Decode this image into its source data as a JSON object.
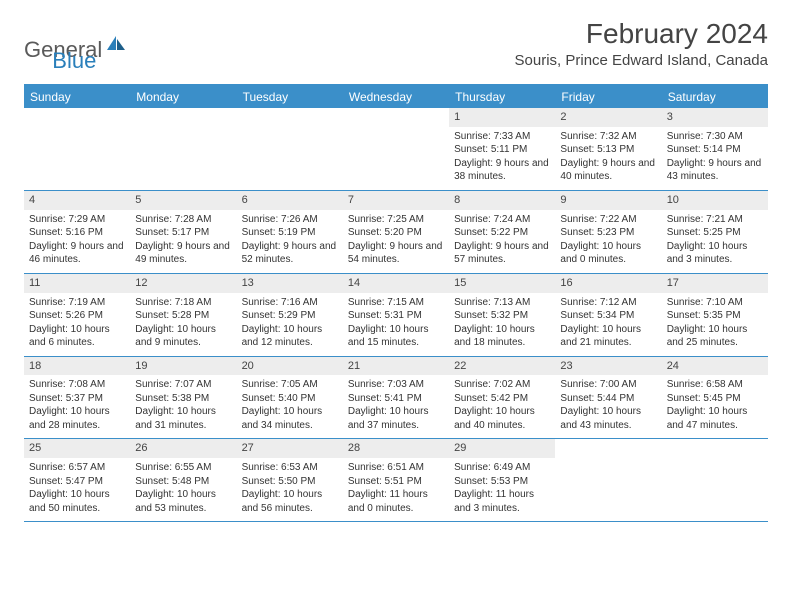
{
  "logo": {
    "text_gray": "General",
    "text_blue": "Blue"
  },
  "title": "February 2024",
  "location": "Souris, Prince Edward Island, Canada",
  "colors": {
    "header_bg": "#3b8fc9",
    "row_border": "#3b8fc9",
    "daynum_bg": "#ededed",
    "text": "#333333"
  },
  "weekdays": [
    "Sunday",
    "Monday",
    "Tuesday",
    "Wednesday",
    "Thursday",
    "Friday",
    "Saturday"
  ],
  "weeks": [
    [
      {
        "num": "",
        "lines": []
      },
      {
        "num": "",
        "lines": []
      },
      {
        "num": "",
        "lines": []
      },
      {
        "num": "",
        "lines": []
      },
      {
        "num": "1",
        "lines": [
          "Sunrise: 7:33 AM",
          "Sunset: 5:11 PM",
          "Daylight: 9 hours and 38 minutes."
        ]
      },
      {
        "num": "2",
        "lines": [
          "Sunrise: 7:32 AM",
          "Sunset: 5:13 PM",
          "Daylight: 9 hours and 40 minutes."
        ]
      },
      {
        "num": "3",
        "lines": [
          "Sunrise: 7:30 AM",
          "Sunset: 5:14 PM",
          "Daylight: 9 hours and 43 minutes."
        ]
      }
    ],
    [
      {
        "num": "4",
        "lines": [
          "Sunrise: 7:29 AM",
          "Sunset: 5:16 PM",
          "Daylight: 9 hours and 46 minutes."
        ]
      },
      {
        "num": "5",
        "lines": [
          "Sunrise: 7:28 AM",
          "Sunset: 5:17 PM",
          "Daylight: 9 hours and 49 minutes."
        ]
      },
      {
        "num": "6",
        "lines": [
          "Sunrise: 7:26 AM",
          "Sunset: 5:19 PM",
          "Daylight: 9 hours and 52 minutes."
        ]
      },
      {
        "num": "7",
        "lines": [
          "Sunrise: 7:25 AM",
          "Sunset: 5:20 PM",
          "Daylight: 9 hours and 54 minutes."
        ]
      },
      {
        "num": "8",
        "lines": [
          "Sunrise: 7:24 AM",
          "Sunset: 5:22 PM",
          "Daylight: 9 hours and 57 minutes."
        ]
      },
      {
        "num": "9",
        "lines": [
          "Sunrise: 7:22 AM",
          "Sunset: 5:23 PM",
          "Daylight: 10 hours and 0 minutes."
        ]
      },
      {
        "num": "10",
        "lines": [
          "Sunrise: 7:21 AM",
          "Sunset: 5:25 PM",
          "Daylight: 10 hours and 3 minutes."
        ]
      }
    ],
    [
      {
        "num": "11",
        "lines": [
          "Sunrise: 7:19 AM",
          "Sunset: 5:26 PM",
          "Daylight: 10 hours and 6 minutes."
        ]
      },
      {
        "num": "12",
        "lines": [
          "Sunrise: 7:18 AM",
          "Sunset: 5:28 PM",
          "Daylight: 10 hours and 9 minutes."
        ]
      },
      {
        "num": "13",
        "lines": [
          "Sunrise: 7:16 AM",
          "Sunset: 5:29 PM",
          "Daylight: 10 hours and 12 minutes."
        ]
      },
      {
        "num": "14",
        "lines": [
          "Sunrise: 7:15 AM",
          "Sunset: 5:31 PM",
          "Daylight: 10 hours and 15 minutes."
        ]
      },
      {
        "num": "15",
        "lines": [
          "Sunrise: 7:13 AM",
          "Sunset: 5:32 PM",
          "Daylight: 10 hours and 18 minutes."
        ]
      },
      {
        "num": "16",
        "lines": [
          "Sunrise: 7:12 AM",
          "Sunset: 5:34 PM",
          "Daylight: 10 hours and 21 minutes."
        ]
      },
      {
        "num": "17",
        "lines": [
          "Sunrise: 7:10 AM",
          "Sunset: 5:35 PM",
          "Daylight: 10 hours and 25 minutes."
        ]
      }
    ],
    [
      {
        "num": "18",
        "lines": [
          "Sunrise: 7:08 AM",
          "Sunset: 5:37 PM",
          "Daylight: 10 hours and 28 minutes."
        ]
      },
      {
        "num": "19",
        "lines": [
          "Sunrise: 7:07 AM",
          "Sunset: 5:38 PM",
          "Daylight: 10 hours and 31 minutes."
        ]
      },
      {
        "num": "20",
        "lines": [
          "Sunrise: 7:05 AM",
          "Sunset: 5:40 PM",
          "Daylight: 10 hours and 34 minutes."
        ]
      },
      {
        "num": "21",
        "lines": [
          "Sunrise: 7:03 AM",
          "Sunset: 5:41 PM",
          "Daylight: 10 hours and 37 minutes."
        ]
      },
      {
        "num": "22",
        "lines": [
          "Sunrise: 7:02 AM",
          "Sunset: 5:42 PM",
          "Daylight: 10 hours and 40 minutes."
        ]
      },
      {
        "num": "23",
        "lines": [
          "Sunrise: 7:00 AM",
          "Sunset: 5:44 PM",
          "Daylight: 10 hours and 43 minutes."
        ]
      },
      {
        "num": "24",
        "lines": [
          "Sunrise: 6:58 AM",
          "Sunset: 5:45 PM",
          "Daylight: 10 hours and 47 minutes."
        ]
      }
    ],
    [
      {
        "num": "25",
        "lines": [
          "Sunrise: 6:57 AM",
          "Sunset: 5:47 PM",
          "Daylight: 10 hours and 50 minutes."
        ]
      },
      {
        "num": "26",
        "lines": [
          "Sunrise: 6:55 AM",
          "Sunset: 5:48 PM",
          "Daylight: 10 hours and 53 minutes."
        ]
      },
      {
        "num": "27",
        "lines": [
          "Sunrise: 6:53 AM",
          "Sunset: 5:50 PM",
          "Daylight: 10 hours and 56 minutes."
        ]
      },
      {
        "num": "28",
        "lines": [
          "Sunrise: 6:51 AM",
          "Sunset: 5:51 PM",
          "Daylight: 11 hours and 0 minutes."
        ]
      },
      {
        "num": "29",
        "lines": [
          "Sunrise: 6:49 AM",
          "Sunset: 5:53 PM",
          "Daylight: 11 hours and 3 minutes."
        ]
      },
      {
        "num": "",
        "lines": []
      },
      {
        "num": "",
        "lines": []
      }
    ]
  ]
}
